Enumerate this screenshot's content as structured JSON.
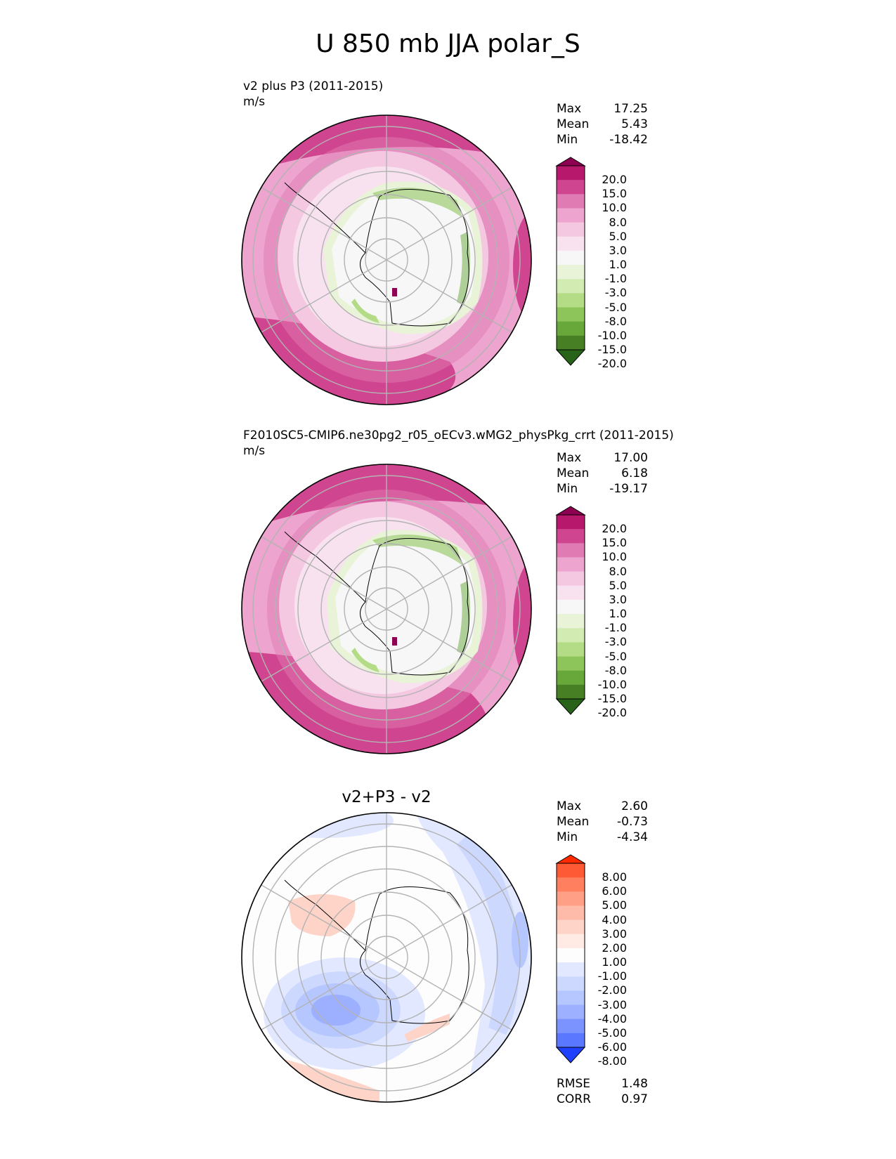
{
  "figure": {
    "title": "U 850 mb JJA polar_S"
  },
  "panels": [
    {
      "title": "v2 plus P3 (2011-2015)",
      "units": "m/s",
      "stats": {
        "max_label": "Max",
        "max": "17.25",
        "mean_label": "Mean",
        "mean": "5.43",
        "min_label": "Min",
        "min": "-18.42"
      },
      "colorbar": {
        "ticks": [
          "20.0",
          "15.0",
          "10.0",
          "8.0",
          "5.0",
          "3.0",
          "1.0",
          "-1.0",
          "-3.0",
          "-5.0",
          "-8.0",
          "-10.0",
          "-15.0",
          "-20.0"
        ],
        "colors": [
          "#8e0152",
          "#b8186c",
          "#d0458f",
          "#e07cb3",
          "#eda4ce",
          "#f5c8e2",
          "#f9e2ef",
          "#f7f7f7",
          "#e8f3d8",
          "#d2ebb3",
          "#b4dc86",
          "#8ec55b",
          "#68a73a",
          "#467f24",
          "#276419"
        ]
      }
    },
    {
      "title": "F2010SC5-CMIP6.ne30pg2_r05_oECv3.wMG2_physPkg_crrt (2011-2015)",
      "units": "m/s",
      "stats": {
        "max_label": "Max",
        "max": "17.00",
        "mean_label": "Mean",
        "mean": "6.18",
        "min_label": "Min",
        "min": "-19.17"
      },
      "colorbar": {
        "ticks": [
          "20.0",
          "15.0",
          "10.0",
          "8.0",
          "5.0",
          "3.0",
          "1.0",
          "-1.0",
          "-3.0",
          "-5.0",
          "-8.0",
          "-10.0",
          "-15.0",
          "-20.0"
        ],
        "colors": [
          "#8e0152",
          "#b8186c",
          "#d0458f",
          "#e07cb3",
          "#eda4ce",
          "#f5c8e2",
          "#f9e2ef",
          "#f7f7f7",
          "#e8f3d8",
          "#d2ebb3",
          "#b4dc86",
          "#8ec55b",
          "#68a73a",
          "#467f24",
          "#276419"
        ]
      }
    },
    {
      "title": "v2+P3 - v2",
      "stats": {
        "max_label": "Max",
        "max": "2.60",
        "mean_label": "Mean",
        "mean": "-0.73",
        "min_label": "Min",
        "min": "-4.34"
      },
      "metrics": {
        "rmse_label": "RMSE",
        "rmse": "1.48",
        "corr_label": "CORR",
        "corr": "0.97"
      },
      "colorbar": {
        "ticks": [
          "8.00",
          "6.00",
          "5.00",
          "4.00",
          "3.00",
          "2.00",
          "1.00",
          "-1.00",
          "-2.00",
          "-3.00",
          "-4.00",
          "-5.00",
          "-6.00",
          "-8.00"
        ],
        "colors": [
          "#ff2a00",
          "#ff5a36",
          "#ff7f5f",
          "#ff9f86",
          "#ffbbaa",
          "#ffd4c8",
          "#ffebe4",
          "#fdfdfd",
          "#e2e8ff",
          "#cdd8ff",
          "#b6c6ff",
          "#9cb0ff",
          "#7b93ff",
          "#5a77ff",
          "#2040ff"
        ]
      }
    }
  ]
}
